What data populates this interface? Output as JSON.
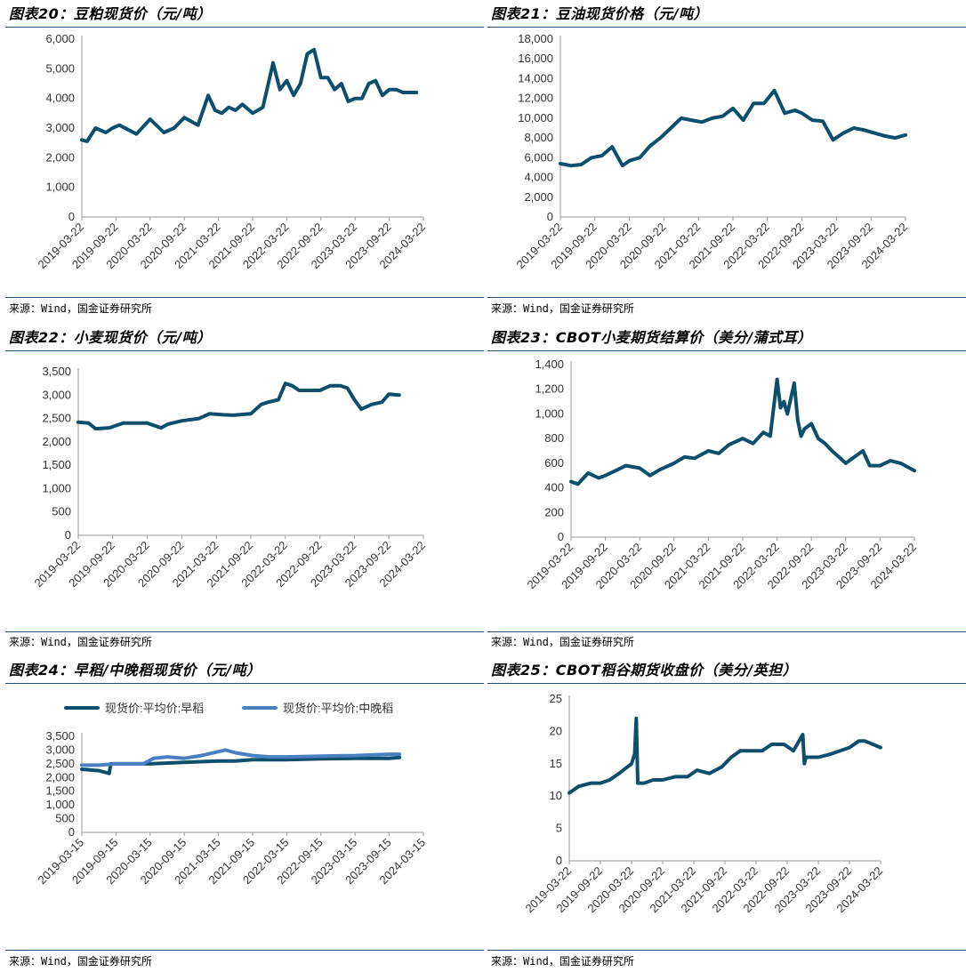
{
  "source_text": "来源：Wind，国金证券研究所",
  "panels": [
    {
      "title": "图表20：豆粕现货价（元/吨）",
      "chart_data": {
        "type": "line",
        "yticks": [
          0,
          1000,
          2000,
          3000,
          4000,
          5000,
          6000
        ],
        "ytick_labels": [
          "0",
          "1,000",
          "2,000",
          "3,000",
          "4,000",
          "5,000",
          "6,000"
        ],
        "ylim": [
          0,
          6000
        ],
        "xticks": [
          "2019-03-22",
          "2019-09-22",
          "2020-03-22",
          "2020-09-22",
          "2021-03-22",
          "2021-09-22",
          "2022-03-22",
          "2022-09-22",
          "2023-03-22",
          "2023-09-22",
          "2024-03-22"
        ],
        "color": "#0b4f6c",
        "series": [
          {
            "x": [
              0,
              0.15,
              0.4,
              0.7,
              0.9,
              1.1,
              1.6,
              2.0,
              2.4,
              2.7,
              3.0,
              3.4,
              3.7,
              3.9,
              4.1,
              4.3,
              4.5,
              4.7,
              5.0,
              5.3,
              5.6,
              5.8,
              6.0,
              6.2,
              6.4,
              6.6,
              6.8,
              7.0,
              7.2,
              7.4,
              7.6,
              7.8,
              8.0,
              8.2,
              8.4,
              8.6,
              8.8,
              9.0,
              9.2,
              9.4,
              9.6,
              9.8
            ],
            "y": [
              2600,
              2550,
              3000,
              2850,
              3000,
              3100,
              2800,
              3300,
              2850,
              3000,
              3350,
              3100,
              4100,
              3600,
              3500,
              3700,
              3600,
              3800,
              3500,
              3700,
              5200,
              4300,
              4600,
              4100,
              4500,
              5500,
              5650,
              4700,
              4700,
              4300,
              4500,
              3900,
              4000,
              4000,
              4500,
              4600,
              4100,
              4300,
              4300,
              4200,
              4200,
              4200
            ]
          }
        ]
      }
    },
    {
      "title": "图表21：豆油现货价格（元/吨）",
      "chart_data": {
        "type": "line",
        "yticks": [
          0,
          2000,
          4000,
          6000,
          8000,
          10000,
          12000,
          14000,
          16000,
          18000
        ],
        "ytick_labels": [
          "0",
          "2,000",
          "4,000",
          "6,000",
          "8,000",
          "10,000",
          "12,000",
          "14,000",
          "16,000",
          "18,000"
        ],
        "ylim": [
          0,
          18000
        ],
        "xticks": [
          "2019-03-22",
          "2019-09-22",
          "2020-03-22",
          "2020-09-22",
          "2021-03-22",
          "2021-09-22",
          "2022-03-22",
          "2022-09-22",
          "2023-03-22",
          "2023-09-22",
          "2024-03-22"
        ],
        "color": "#0b4f6c",
        "series": [
          {
            "x": [
              0,
              0.3,
              0.6,
              0.9,
              1.2,
              1.5,
              1.8,
              2.0,
              2.3,
              2.6,
              2.9,
              3.2,
              3.5,
              3.8,
              4.1,
              4.4,
              4.7,
              5.0,
              5.3,
              5.6,
              5.9,
              6.2,
              6.5,
              6.8,
              7.0,
              7.3,
              7.6,
              7.9,
              8.2,
              8.5,
              8.8,
              9.1,
              9.4,
              9.7,
              10.0
            ],
            "y": [
              5400,
              5200,
              5300,
              6000,
              6200,
              7100,
              5200,
              5700,
              6000,
              7200,
              8000,
              9000,
              10000,
              9800,
              9600,
              10000,
              10200,
              11000,
              9800,
              11500,
              11500,
              12800,
              10500,
              10800,
              10500,
              9800,
              9700,
              7800,
              8500,
              9000,
              8800,
              8500,
              8200,
              8000,
              8300
            ]
          }
        ]
      }
    },
    {
      "title": "图表22：小麦现货价（元/吨）",
      "chart_data": {
        "type": "line",
        "yticks": [
          0,
          500,
          1000,
          1500,
          2000,
          2500,
          3000,
          3500
        ],
        "ytick_labels": [
          "0",
          "500",
          "1,000",
          "1,500",
          "2,000",
          "2,500",
          "3,000",
          "3,500"
        ],
        "ylim": [
          0,
          3500
        ],
        "xticks": [
          "2019-03-22",
          "2019-09-22",
          "2020-03-22",
          "2020-09-22",
          "2021-03-22",
          "2021-09-22",
          "2022-03-22",
          "2022-09-22",
          "2023-03-22",
          "2023-09-22",
          "2024-03-22"
        ],
        "color": "#0b4f6c",
        "series": [
          {
            "x": [
              0,
              0.3,
              0.5,
              0.9,
              1.3,
              1.6,
              2.0,
              2.4,
              2.6,
              3.0,
              3.5,
              3.8,
              4.2,
              4.5,
              5.0,
              5.3,
              5.5,
              5.8,
              6.0,
              6.2,
              6.4,
              6.7,
              7.0,
              7.3,
              7.6,
              7.8,
              8.0,
              8.2,
              8.5,
              8.8,
              9.0,
              9.3
            ],
            "y": [
              2420,
              2400,
              2280,
              2300,
              2400,
              2400,
              2400,
              2300,
              2380,
              2450,
              2500,
              2600,
              2580,
              2570,
              2600,
              2800,
              2850,
              2900,
              3250,
              3200,
              3100,
              3100,
              3100,
              3200,
              3200,
              3150,
              2900,
              2700,
              2800,
              2850,
              3020,
              3000
            ]
          }
        ]
      }
    },
    {
      "title": "图表23：CBOT小麦期货结算价（美分/蒲式耳）",
      "chart_data": {
        "type": "line",
        "yticks": [
          0,
          200,
          400,
          600,
          800,
          1000,
          1200,
          1400
        ],
        "ytick_labels": [
          "0",
          "200",
          "400",
          "600",
          "800",
          "1,000",
          "1,200",
          "1,400"
        ],
        "ylim": [
          0,
          1400
        ],
        "xticks": [
          "2019-03-22",
          "2019-09-22",
          "2020-03-22",
          "2020-09-22",
          "2021-03-22",
          "2021-09-22",
          "2022-03-22",
          "2022-09-22",
          "2023-03-22",
          "2023-09-22",
          "2024-03-22"
        ],
        "color": "#0b4f6c",
        "series": [
          {
            "x": [
              0,
              0.2,
              0.5,
              0.8,
              1.0,
              1.3,
              1.6,
              2.0,
              2.3,
              2.6,
              3.0,
              3.3,
              3.6,
              4.0,
              4.3,
              4.6,
              5.0,
              5.3,
              5.6,
              5.8,
              6.0,
              6.1,
              6.2,
              6.3,
              6.5,
              6.6,
              6.7,
              6.8,
              7.0,
              7.2,
              7.4,
              7.6,
              7.8,
              8.0,
              8.3,
              8.5,
              8.7,
              9.0,
              9.3,
              9.6,
              10.0
            ],
            "y": [
              450,
              430,
              520,
              480,
              500,
              540,
              580,
              560,
              500,
              550,
              600,
              650,
              640,
              700,
              680,
              750,
              800,
              760,
              850,
              820,
              1280,
              1050,
              1100,
              1000,
              1250,
              950,
              820,
              880,
              920,
              800,
              760,
              700,
              650,
              600,
              660,
              700,
              580,
              580,
              620,
              600,
              540
            ]
          }
        ]
      }
    },
    {
      "title": "图表24：早稻/中晚稻现货价（元/吨）",
      "chart_data": {
        "type": "line",
        "yticks": [
          0,
          500,
          1000,
          1500,
          2000,
          2500,
          3000,
          3500
        ],
        "ytick_labels": [
          "0",
          "500",
          "1,000",
          "1,500",
          "2,000",
          "2,500",
          "3,000",
          "3,500"
        ],
        "ylim": [
          0,
          3500
        ],
        "xticks": [
          "2019-03-15",
          "2019-09-15",
          "2020-03-15",
          "2020-09-15",
          "2021-03-15",
          "2021-09-15",
          "2022-03-15",
          "2022-09-15",
          "2023-03-15",
          "2023-09-15",
          "2024-03-15"
        ],
        "legend_position": "top",
        "series": [
          {
            "name": "现货价:平均价:早稻",
            "color": "#0b4f6c",
            "x": [
              0,
              0.5,
              0.8,
              0.85,
              1.0,
              2.0,
              3.0,
              4.0,
              4.5,
              5.0,
              5.5,
              6.0,
              7.0,
              8.0,
              9.0,
              9.3
            ],
            "y": [
              2300,
              2250,
              2150,
              2500,
              2500,
              2500,
              2550,
              2600,
              2600,
              2650,
              2650,
              2650,
              2680,
              2700,
              2700,
              2730
            ]
          },
          {
            "name": "现货价:平均价:中晚稻",
            "color": "#4a7fc1",
            "x": [
              0,
              0.5,
              1.0,
              1.8,
              2.1,
              2.5,
              3.0,
              3.5,
              4.2,
              4.5,
              5.0,
              5.5,
              6.0,
              7.0,
              8.0,
              9.0,
              9.3
            ],
            "y": [
              2450,
              2450,
              2500,
              2500,
              2700,
              2750,
              2700,
              2800,
              3000,
              2900,
              2800,
              2750,
              2750,
              2780,
              2800,
              2850,
              2850
            ]
          }
        ]
      }
    },
    {
      "title": "图表25：CBOT稻谷期货收盘价（美分/英担）",
      "chart_data": {
        "type": "line",
        "yticks": [
          0,
          5,
          10,
          15,
          20,
          25
        ],
        "ytick_labels": [
          "0",
          "5",
          "10",
          "15",
          "20",
          "25"
        ],
        "ylim": [
          0,
          25
        ],
        "xticks": [
          "2019-03-22",
          "2019-09-22",
          "2020-03-22",
          "2020-09-22",
          "2021-03-22",
          "2021-09-22",
          "2022-03-22",
          "2022-09-22",
          "2023-03-22",
          "2023-09-22",
          "2024-03-22"
        ],
        "color": "#0b4f6c",
        "series": [
          {
            "x": [
              0,
              0.3,
              0.7,
              1.0,
              1.3,
              1.6,
              2.0,
              2.1,
              2.15,
              2.2,
              2.4,
              2.7,
              3.0,
              3.4,
              3.8,
              4.1,
              4.5,
              4.9,
              5.2,
              5.5,
              5.8,
              6.2,
              6.5,
              6.9,
              7.2,
              7.5,
              7.55,
              7.6,
              8.0,
              8.4,
              8.7,
              9.0,
              9.3,
              9.5,
              10.0
            ],
            "y": [
              10.5,
              11.5,
              12,
              12,
              12.5,
              13.5,
              15,
              16.5,
              22,
              12,
              12,
              12.5,
              12.5,
              13,
              13,
              14,
              13.5,
              14.5,
              16,
              17,
              17,
              17,
              18,
              18,
              17,
              19.5,
              15,
              16,
              16,
              16.5,
              17,
              17.5,
              18.5,
              18.5,
              17.5
            ]
          }
        ]
      }
    }
  ]
}
